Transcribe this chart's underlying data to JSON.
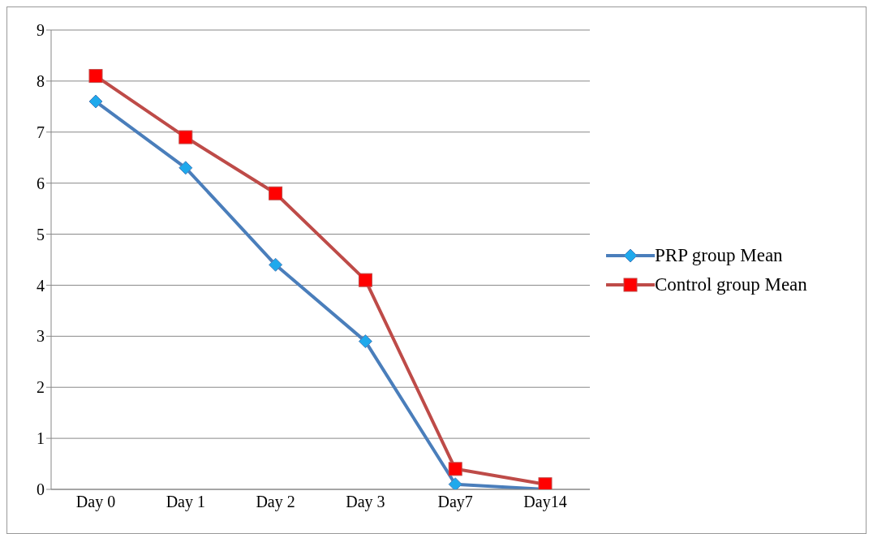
{
  "chart_data": {
    "type": "line",
    "categories": [
      "Day 0",
      "Day 1",
      "Day 2",
      "Day 3",
      "Day7",
      "Day14"
    ],
    "series": [
      {
        "name": "PRP group Mean",
        "color": "#4a7ebb",
        "marker": "diamond",
        "values": [
          7.6,
          6.3,
          4.4,
          2.9,
          0.1,
          0
        ]
      },
      {
        "name": "Control group Mean",
        "color": "#be4b48",
        "marker": "square",
        "values": [
          8.1,
          6.9,
          5.8,
          4.1,
          0.4,
          0.1
        ]
      }
    ],
    "ylim": [
      0,
      9
    ],
    "yticks": [
      0,
      1,
      2,
      3,
      4,
      5,
      6,
      7,
      8,
      9
    ],
    "grid": "y",
    "legend": "right",
    "line_style": "solid"
  }
}
